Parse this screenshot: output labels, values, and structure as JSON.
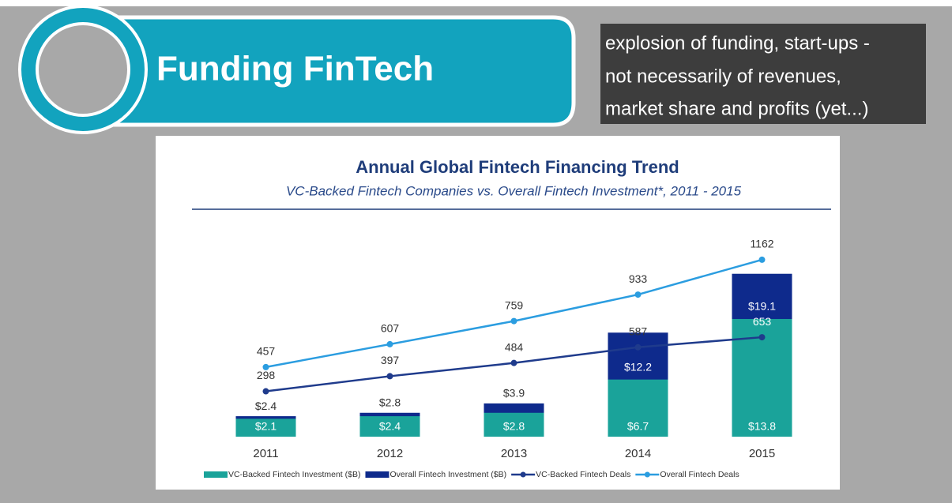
{
  "slide": {
    "banner": "Funding FinTech",
    "note": [
      "explosion of funding, start-ups -",
      "not necessarily of revenues,",
      "market share and profits (yet...)"
    ]
  },
  "chart_data": {
    "type": "bar",
    "title": "Annual Global Fintech Financing Trend",
    "subtitle": "VC-Backed Fintech Companies vs. Overall Fintech Investment*, 2011 - 2015",
    "categories": [
      "2011",
      "2012",
      "2013",
      "2014",
      "2015"
    ],
    "ylim": [
      0,
      25
    ],
    "y2lim": [
      0,
      1400
    ],
    "series": [
      {
        "name": "VC-Backed Fintech Investment ($B)",
        "type": "bar",
        "color": "#1aa39a",
        "values": [
          2.1,
          2.4,
          2.8,
          6.7,
          13.8
        ],
        "value_labels": [
          "$2.1",
          "$2.4",
          "$2.8",
          "$6.7",
          "$13.8"
        ]
      },
      {
        "name": "Overall Fintech Investment ($B)",
        "type": "bar",
        "color": "#0e2a8c",
        "values": [
          2.4,
          2.8,
          3.9,
          12.2,
          19.1
        ],
        "value_labels": [
          "$2.4",
          "$2.8",
          "$3.9",
          "$12.2",
          "$19.1"
        ]
      },
      {
        "name": "VC-Backed Fintech Deals",
        "type": "line",
        "axis": "y2",
        "color": "#1f3b8c",
        "values": [
          298,
          397,
          484,
          587,
          653
        ]
      },
      {
        "name": "Overall Fintech Deals",
        "type": "line",
        "axis": "y2",
        "color": "#2b9de0",
        "values": [
          457,
          607,
          759,
          933,
          1162
        ]
      }
    ]
  }
}
